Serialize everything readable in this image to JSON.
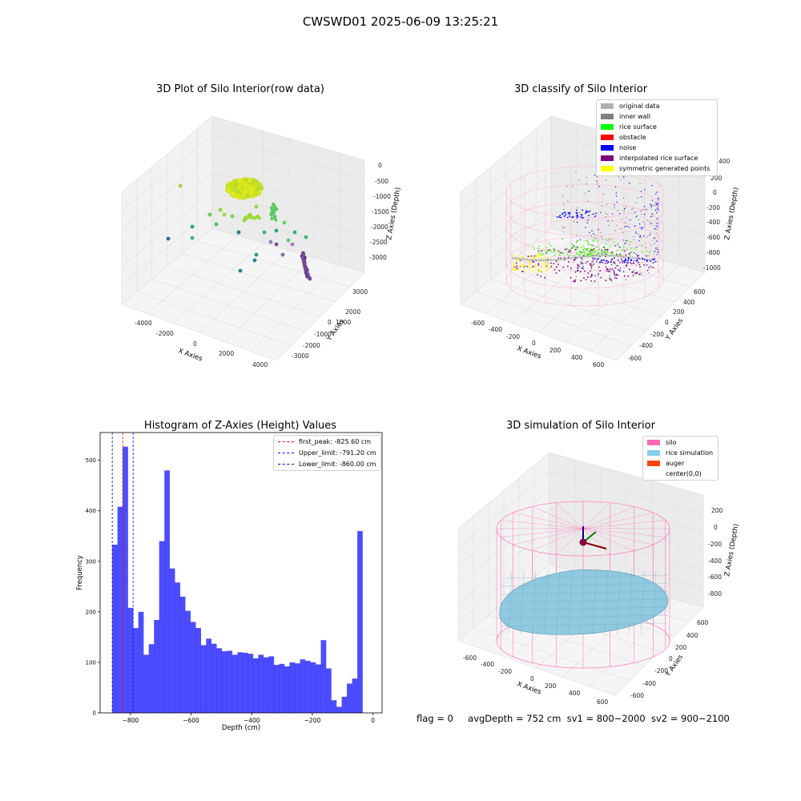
{
  "figure": {
    "suptitle": "CWSWD01 2025-06-09 13:25:21",
    "footer": {
      "flag": "flag = 0",
      "avg_depth": "avgDepth = 752 cm",
      "sv1": "sv1 = 800~2000",
      "sv2": "sv2 = 900~2100"
    }
  },
  "panels": {
    "raw": {
      "title": "3D Plot of Silo Interior(row data)",
      "xlabel": "X Axies",
      "ylabel": "Y Axies",
      "zlabel": "Z Axies (Depth)",
      "x_ticks": [
        "-4000",
        "-2000",
        "0",
        "2000",
        "4000"
      ],
      "y_ticks": [
        "3000",
        "2000",
        "1000",
        "0",
        "-1000",
        "-2000",
        "-3000"
      ],
      "z_ticks": [
        "0",
        "-500",
        "-1000",
        "-1500",
        "-2000",
        "-2500",
        "-3000"
      ]
    },
    "classify": {
      "title": "3D classify of Silo Interior",
      "xlabel": "X Axies",
      "ylabel": "Y Axies",
      "zlabel": "Z Axies (Depth)",
      "x_ticks": [
        "-600",
        "-400",
        "-200",
        "0",
        "200",
        "400",
        "600"
      ],
      "y_ticks": [
        "600",
        "400",
        "200",
        "0",
        "-200",
        "-400",
        "-600"
      ],
      "z_ticks": [
        "200",
        "0",
        "-200",
        "-400",
        "-600",
        "-800",
        "-1000"
      ],
      "z_ticks_extra": "400",
      "legend": [
        {
          "label": "original data",
          "color": "#b0b0b0"
        },
        {
          "label": "inner wall",
          "color": "#808080"
        },
        {
          "label": "rice surface",
          "color": "#00ff00"
        },
        {
          "label": "obstacle",
          "color": "#ff0000"
        },
        {
          "label": "noise",
          "color": "#0000ff"
        },
        {
          "label": "interpolated rice surface",
          "color": "#800080"
        },
        {
          "label": "symmetric generated points",
          "color": "#ffff00"
        }
      ]
    },
    "simulation": {
      "title": "3D simulation of Silo Interior",
      "xlabel": "X Axies",
      "ylabel": "Y Axies",
      "zlabel": "Z Axies (Depth)",
      "x_ticks": [
        "-600",
        "-400",
        "-200",
        "0",
        "200",
        "400",
        "600"
      ],
      "y_ticks": [
        "600",
        "400",
        "200",
        "0",
        "-200",
        "-400",
        "-600"
      ],
      "z_ticks": [
        "200",
        "0",
        "-200",
        "-400",
        "-600",
        "-800"
      ],
      "legend": [
        {
          "label": "silo",
          "color": "#ff69b4"
        },
        {
          "label": "rice simulation",
          "color": "#87ceeb"
        },
        {
          "label": "auger",
          "color": "#ff4500"
        },
        {
          "label": "center(0,0)",
          "color": ""
        }
      ]
    }
  },
  "chart_data": {
    "type": "bar",
    "title": "Histogram of Z-Axies (Height) Values",
    "xlabel": "Depth (cm)",
    "ylabel": "Frequency",
    "xlim": [
      -900,
      30
    ],
    "ylim": [
      0,
      555
    ],
    "bar_color": "#0000ff",
    "x_ticks": [
      -800,
      -600,
      -400,
      -200,
      0
    ],
    "x_tick_labels": [
      "−800",
      "−600",
      "−400",
      "−200",
      "0"
    ],
    "y_ticks": [
      0,
      100,
      200,
      300,
      400,
      500
    ],
    "y_tick_labels": [
      "0",
      "100",
      "200",
      "300",
      "400",
      "500"
    ],
    "bins_start": -860,
    "bin_width": 17.2,
    "values": [
      333,
      408,
      527,
      208,
      168,
      200,
      115,
      136,
      184,
      340,
      480,
      286,
      258,
      230,
      202,
      180,
      168,
      134,
      147,
      137,
      128,
      122,
      123,
      115,
      120,
      119,
      117,
      108,
      115,
      110,
      112,
      95,
      97,
      92,
      100,
      98,
      106,
      103,
      100,
      96,
      144,
      88,
      25,
      12,
      32,
      58,
      68,
      360
    ],
    "lines": [
      {
        "label": "first_peak: -825.60 cm",
        "x": -825.6,
        "color": "#ff0000"
      },
      {
        "label": "Upper_limit: -791.20 cm",
        "x": -791.2,
        "color": "#0000ff"
      },
      {
        "label": "Lower_limit: -860.00 cm",
        "x": -860.0,
        "color": "#0000ff"
      }
    ],
    "legend_position": "upper right"
  }
}
